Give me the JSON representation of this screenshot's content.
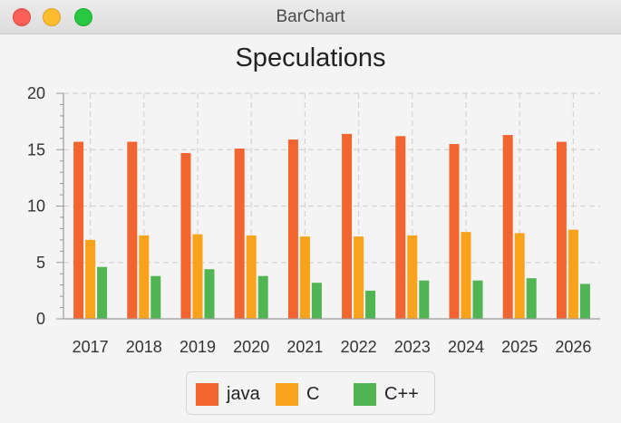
{
  "window": {
    "title": "BarChart"
  },
  "chart_data": {
    "type": "bar",
    "title": "Speculations",
    "xlabel": "",
    "ylabel": "",
    "categories": [
      "2017",
      "2018",
      "2019",
      "2020",
      "2021",
      "2022",
      "2023",
      "2024",
      "2025",
      "2026"
    ],
    "series": [
      {
        "name": "java",
        "color": "#f26430",
        "values": [
          15.7,
          15.7,
          14.7,
          15.1,
          15.9,
          16.4,
          16.2,
          15.5,
          16.3,
          15.7
        ]
      },
      {
        "name": "C",
        "color": "#f9a21b",
        "values": [
          7.0,
          7.4,
          7.5,
          7.4,
          7.3,
          7.3,
          7.4,
          7.7,
          7.6,
          7.9
        ]
      },
      {
        "name": "C++",
        "color": "#52b553",
        "values": [
          4.6,
          3.8,
          4.4,
          3.8,
          3.2,
          2.5,
          3.4,
          3.4,
          3.6,
          3.1
        ]
      }
    ],
    "ylim": [
      0,
      20
    ],
    "yticks": [
      "0",
      "5",
      "10",
      "15",
      "20"
    ],
    "grid": true,
    "legend_position": "bottom"
  }
}
